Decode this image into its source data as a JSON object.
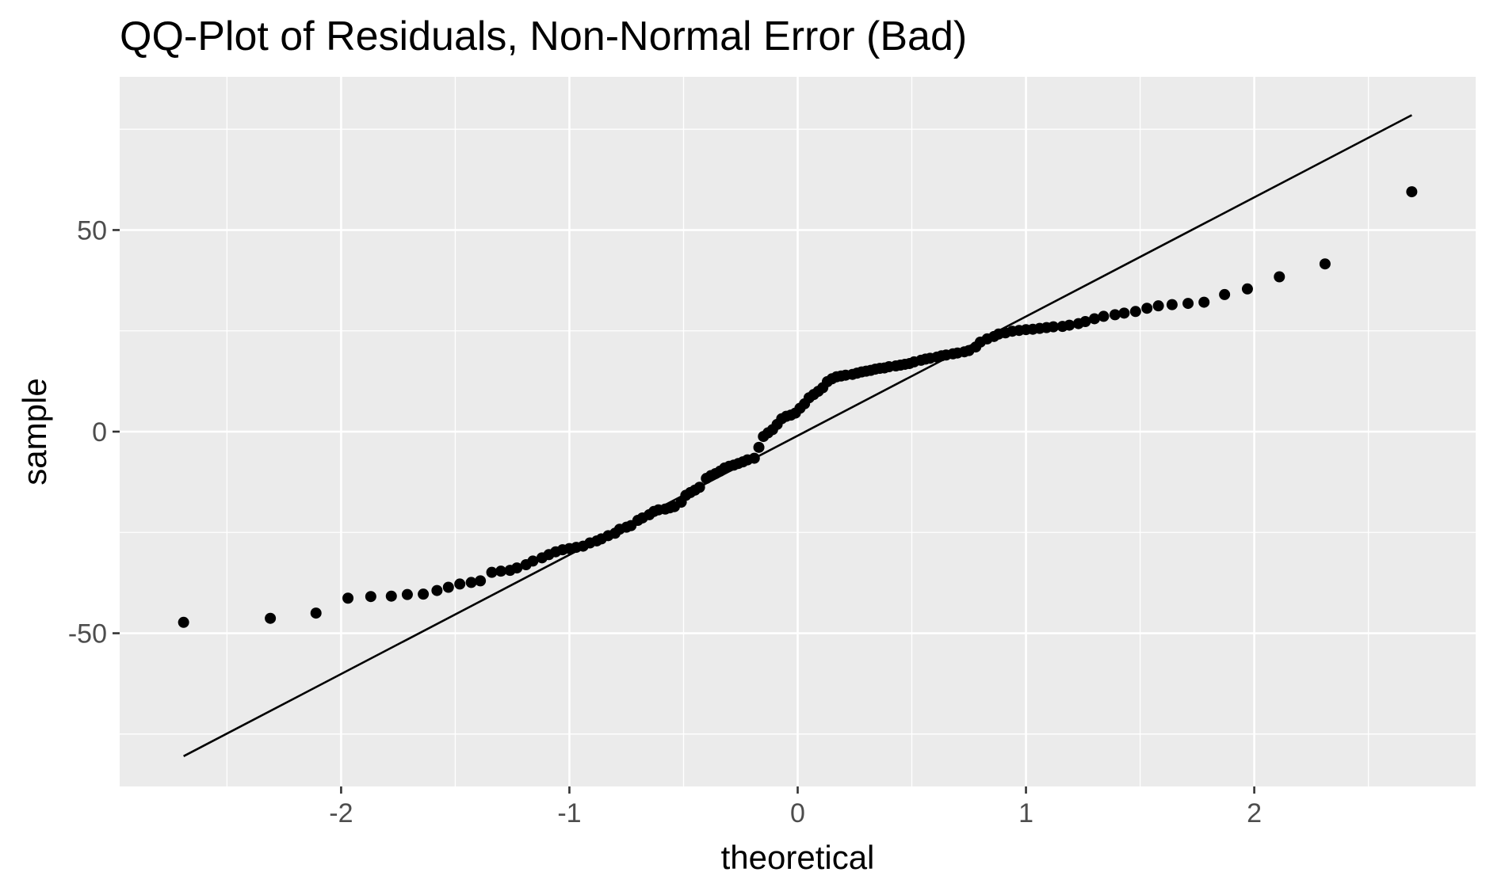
{
  "chart_data": {
    "type": "scatter",
    "title": "QQ-Plot of Residuals, Non-Normal Error (Bad)",
    "xlabel": "theoretical",
    "ylabel": "sample",
    "xlim": [
      -2.97,
      2.97
    ],
    "ylim": [
      -88,
      88
    ],
    "x_ticks": [
      -2,
      -1,
      0,
      1,
      2
    ],
    "x_tick_labels": [
      "-2",
      "-1",
      "0",
      "1",
      "2"
    ],
    "y_ticks": [
      -50,
      0,
      50
    ],
    "y_tick_labels": [
      "-50",
      "0",
      "50"
    ],
    "x_minor_breaks": [
      -2.5,
      -1.5,
      -0.5,
      0.5,
      1.5,
      2.5
    ],
    "y_minor_breaks": [
      -75,
      -25,
      25,
      75
    ],
    "grid": true,
    "panel_background": "#ebebeb",
    "grid_color": "#ffffff",
    "point_color": "#000000",
    "reference_line": {
      "x": [
        -2.69,
        2.69
      ],
      "y": [
        -80.5,
        78.5
      ]
    },
    "series": [
      {
        "points": [
          [
            -2.69,
            -47.3
          ],
          [
            -2.31,
            -46.3
          ],
          [
            -2.11,
            -45.0
          ],
          [
            -1.97,
            -41.3
          ],
          [
            -1.87,
            -40.9
          ],
          [
            -1.78,
            -40.8
          ],
          [
            -1.71,
            -40.4
          ],
          [
            -1.64,
            -40.3
          ],
          [
            -1.58,
            -39.4
          ],
          [
            -1.53,
            -38.6
          ],
          [
            -1.48,
            -37.8
          ],
          [
            -1.43,
            -37.4
          ],
          [
            -1.39,
            -37.0
          ],
          [
            -1.34,
            -34.9
          ],
          [
            -1.3,
            -34.6
          ],
          [
            -1.26,
            -34.4
          ],
          [
            -1.23,
            -33.8
          ],
          [
            -1.19,
            -33.0
          ],
          [
            -1.16,
            -32.1
          ],
          [
            -1.12,
            -31.3
          ],
          [
            -1.09,
            -30.5
          ],
          [
            -1.06,
            -29.8
          ],
          [
            -1.03,
            -29.3
          ],
          [
            -1.0,
            -29.0
          ],
          [
            -0.97,
            -28.7
          ],
          [
            -0.94,
            -28.4
          ],
          [
            -0.91,
            -27.6
          ],
          [
            -0.88,
            -27.1
          ],
          [
            -0.86,
            -26.6
          ],
          [
            -0.83,
            -25.8
          ],
          [
            -0.8,
            -25.2
          ],
          [
            -0.78,
            -24.2
          ],
          [
            -0.75,
            -23.7
          ],
          [
            -0.73,
            -23.3
          ],
          [
            -0.7,
            -22.0
          ],
          [
            -0.68,
            -21.4
          ],
          [
            -0.65,
            -20.6
          ],
          [
            -0.63,
            -19.8
          ],
          [
            -0.61,
            -19.4
          ],
          [
            -0.58,
            -19.2
          ],
          [
            -0.56,
            -18.9
          ],
          [
            -0.54,
            -18.6
          ],
          [
            -0.51,
            -17.5
          ],
          [
            -0.49,
            -15.8
          ],
          [
            -0.47,
            -15.1
          ],
          [
            -0.45,
            -14.5
          ],
          [
            -0.43,
            -13.8
          ],
          [
            -0.4,
            -11.6
          ],
          [
            -0.38,
            -10.9
          ],
          [
            -0.36,
            -10.4
          ],
          [
            -0.34,
            -9.8
          ],
          [
            -0.32,
            -9.0
          ],
          [
            -0.3,
            -8.6
          ],
          [
            -0.28,
            -8.3
          ],
          [
            -0.26,
            -7.9
          ],
          [
            -0.24,
            -7.5
          ],
          [
            -0.22,
            -7.0
          ],
          [
            -0.19,
            -6.6
          ],
          [
            -0.17,
            -3.9
          ],
          [
            -0.15,
            -1.2
          ],
          [
            -0.13,
            -0.3
          ],
          [
            -0.11,
            0.5
          ],
          [
            -0.09,
            1.8
          ],
          [
            -0.07,
            3.2
          ],
          [
            -0.05,
            3.8
          ],
          [
            -0.03,
            4.1
          ],
          [
            -0.01,
            4.6
          ],
          [
            0.01,
            5.8
          ],
          [
            0.03,
            6.9
          ],
          [
            0.05,
            8.4
          ],
          [
            0.07,
            9.2
          ],
          [
            0.09,
            10.0
          ],
          [
            0.11,
            10.9
          ],
          [
            0.13,
            12.4
          ],
          [
            0.15,
            13.1
          ],
          [
            0.17,
            13.6
          ],
          [
            0.19,
            13.8
          ],
          [
            0.21,
            14.0
          ],
          [
            0.24,
            14.2
          ],
          [
            0.26,
            14.5
          ],
          [
            0.28,
            14.8
          ],
          [
            0.3,
            15.0
          ],
          [
            0.32,
            15.2
          ],
          [
            0.34,
            15.5
          ],
          [
            0.36,
            15.7
          ],
          [
            0.38,
            15.8
          ],
          [
            0.4,
            16.1
          ],
          [
            0.43,
            16.3
          ],
          [
            0.45,
            16.5
          ],
          [
            0.47,
            16.7
          ],
          [
            0.49,
            16.9
          ],
          [
            0.51,
            17.3
          ],
          [
            0.54,
            17.7
          ],
          [
            0.56,
            18.0
          ],
          [
            0.58,
            18.2
          ],
          [
            0.61,
            18.5
          ],
          [
            0.63,
            18.8
          ],
          [
            0.65,
            19.0
          ],
          [
            0.68,
            19.3
          ],
          [
            0.7,
            19.5
          ],
          [
            0.73,
            19.8
          ],
          [
            0.75,
            20.1
          ],
          [
            0.78,
            21.0
          ],
          [
            0.8,
            22.2
          ],
          [
            0.83,
            23.0
          ],
          [
            0.86,
            23.6
          ],
          [
            0.88,
            24.2
          ],
          [
            0.91,
            24.5
          ],
          [
            0.94,
            24.9
          ],
          [
            0.97,
            25.1
          ],
          [
            1.0,
            25.3
          ],
          [
            1.03,
            25.4
          ],
          [
            1.06,
            25.6
          ],
          [
            1.09,
            25.8
          ],
          [
            1.12,
            26.0
          ],
          [
            1.16,
            26.1
          ],
          [
            1.19,
            26.4
          ],
          [
            1.23,
            26.8
          ],
          [
            1.26,
            27.3
          ],
          [
            1.3,
            28.0
          ],
          [
            1.34,
            28.6
          ],
          [
            1.39,
            29.0
          ],
          [
            1.43,
            29.4
          ],
          [
            1.48,
            29.8
          ],
          [
            1.53,
            30.6
          ],
          [
            1.58,
            31.2
          ],
          [
            1.64,
            31.5
          ],
          [
            1.71,
            31.8
          ],
          [
            1.78,
            32.1
          ],
          [
            1.87,
            34.0
          ],
          [
            1.97,
            35.4
          ],
          [
            2.11,
            38.4
          ],
          [
            2.31,
            41.6
          ],
          [
            2.69,
            59.5
          ]
        ]
      }
    ]
  }
}
